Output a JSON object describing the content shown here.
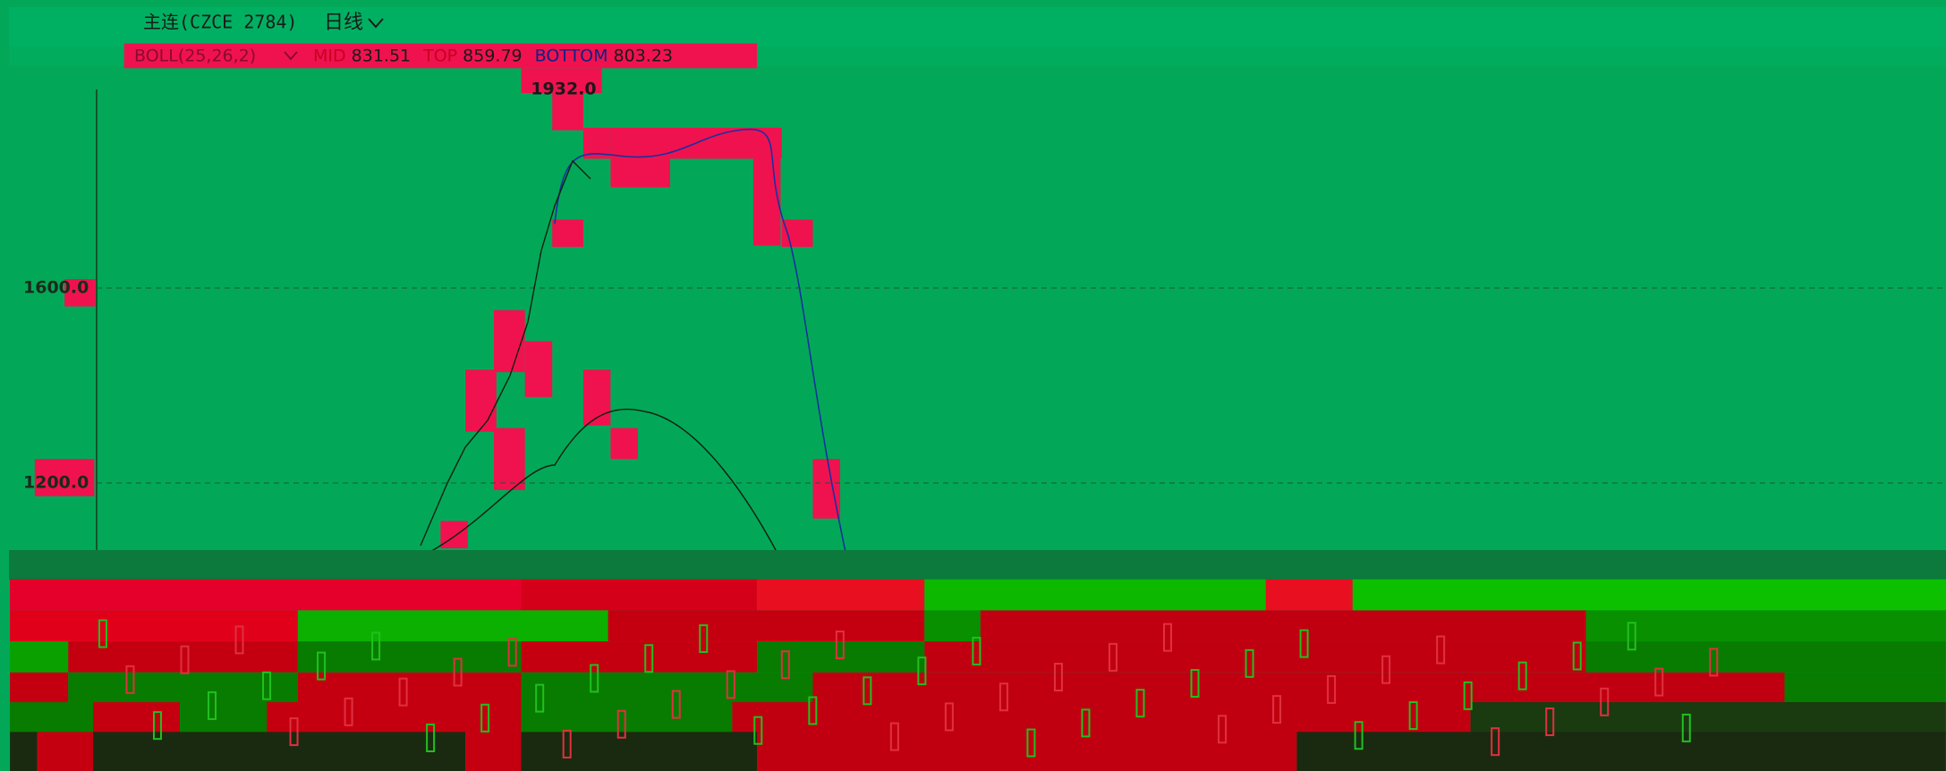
{
  "header": {
    "symbol": "主连(CZCE 2784)",
    "period": "日线"
  },
  "indicator": {
    "name": "BOLL(25,26,2)",
    "lines": [
      {
        "label": "MID",
        "value": 831.51
      },
      {
        "label": "TOP",
        "value": 859.79
      },
      {
        "label": "BOTTOM",
        "value": 803.23
      }
    ]
  },
  "peak_label": "1932.0",
  "y_axis": {
    "ticks": [
      {
        "value": 1600,
        "label": "1600.0"
      },
      {
        "value": 1200,
        "label": "1200.0"
      }
    ]
  }
}
